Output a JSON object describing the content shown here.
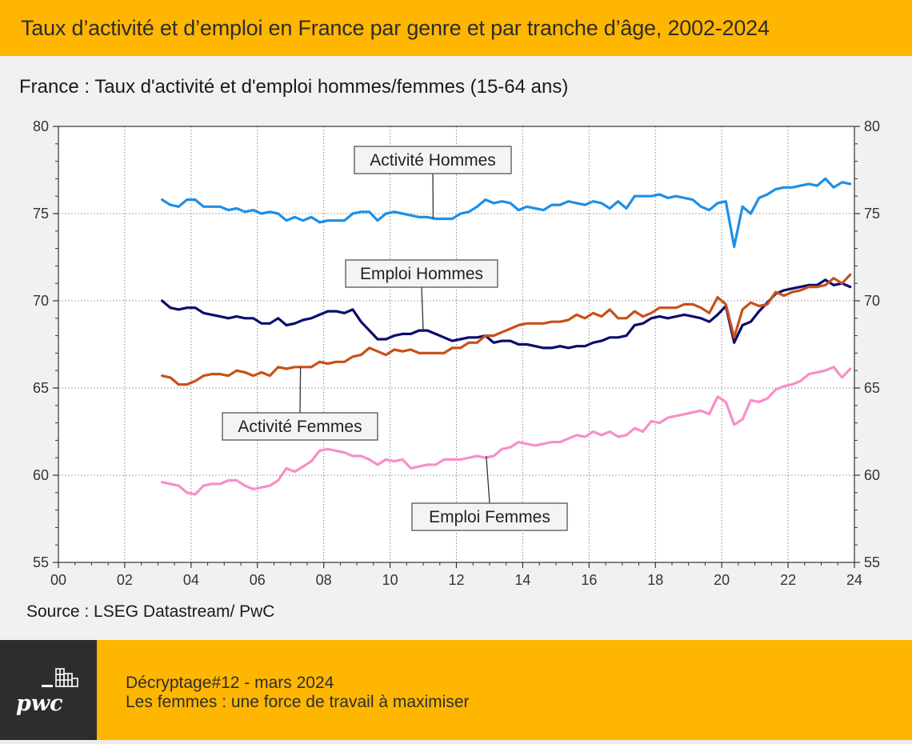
{
  "header": {
    "title": "Taux d’activité et d’emploi en France par genre et par tranche d’âge, 2002-2024"
  },
  "source": "Source : LSEG Datastream/ PwC",
  "footer": {
    "logo": "pwc",
    "line1": "Décryptage#12 - mars 2024",
    "line2": "Les femmes : une force de travail à maximiser"
  },
  "colors": {
    "brand": "#ffb600",
    "dark": "#2d2d2d",
    "activite_hommes": "#1f8fe6",
    "emploi_hommes": "#0b0b6e",
    "activite_femmes": "#c8501a",
    "emploi_femmes": "#f78fc8"
  },
  "chart_data": {
    "type": "line",
    "title": "France : Taux d'activité et d'emploi hommes/femmes (15-64 ans)",
    "x_ticks": [
      "00",
      "02",
      "04",
      "06",
      "08",
      "10",
      "12",
      "14",
      "16",
      "18",
      "20",
      "22",
      "24"
    ],
    "x_tick_values": [
      2000,
      2002,
      2004,
      2006,
      2008,
      2010,
      2012,
      2014,
      2016,
      2018,
      2020,
      2022,
      2024
    ],
    "xlim": [
      2000,
      2024
    ],
    "ylim": [
      55,
      80
    ],
    "y_ticks": [
      55,
      60,
      65,
      70,
      75,
      80
    ],
    "y_axis_right": true,
    "grid": true,
    "x_quarterly_from": 2003.125,
    "series": [
      {
        "name": "Activité Hommes",
        "color_key": "activite_hommes",
        "annotation": {
          "text": "Activité Hommes",
          "pointer_year": 2011.3,
          "pointer_value": 74.7
        },
        "values": [
          75.8,
          75.5,
          75.4,
          75.8,
          75.8,
          75.4,
          75.4,
          75.4,
          75.2,
          75.3,
          75.1,
          75.2,
          75.0,
          75.1,
          75.0,
          74.6,
          74.8,
          74.6,
          74.8,
          74.5,
          74.6,
          74.6,
          74.6,
          75.0,
          75.1,
          75.1,
          74.6,
          75.0,
          75.1,
          75.0,
          74.9,
          74.8,
          74.8,
          74.7,
          74.7,
          74.7,
          75.0,
          75.1,
          75.4,
          75.8,
          75.6,
          75.7,
          75.6,
          75.2,
          75.4,
          75.3,
          75.2,
          75.5,
          75.5,
          75.7,
          75.6,
          75.5,
          75.7,
          75.6,
          75.3,
          75.7,
          75.3,
          76.0,
          76.0,
          76.0,
          76.1,
          75.9,
          76.0,
          75.9,
          75.8,
          75.4,
          75.2,
          75.6,
          75.7,
          73.1,
          75.4,
          75.0,
          75.9,
          76.1,
          76.4,
          76.5,
          76.5,
          76.6,
          76.7,
          76.6,
          77.0,
          76.5,
          76.8,
          76.7
        ]
      },
      {
        "name": "Emploi Hommes",
        "color_key": "emploi_hommes",
        "annotation": {
          "text": "Emploi Hommes",
          "pointer_year": 2011.0,
          "pointer_value": 68.3
        },
        "values": [
          70.0,
          69.6,
          69.5,
          69.6,
          69.6,
          69.3,
          69.2,
          69.1,
          69.0,
          69.1,
          69.0,
          69.0,
          68.7,
          68.7,
          69.0,
          68.6,
          68.7,
          68.9,
          69.0,
          69.2,
          69.4,
          69.4,
          69.3,
          69.5,
          68.8,
          68.3,
          67.8,
          67.8,
          68.0,
          68.1,
          68.1,
          68.3,
          68.3,
          68.1,
          67.9,
          67.7,
          67.8,
          67.9,
          67.9,
          68.0,
          67.6,
          67.7,
          67.7,
          67.5,
          67.5,
          67.4,
          67.3,
          67.3,
          67.4,
          67.3,
          67.4,
          67.4,
          67.6,
          67.7,
          67.9,
          67.9,
          68.0,
          68.6,
          68.7,
          69.0,
          69.1,
          69.0,
          69.1,
          69.2,
          69.1,
          69.0,
          68.8,
          69.2,
          69.7,
          67.6,
          68.6,
          68.8,
          69.4,
          69.9,
          70.4,
          70.6,
          70.7,
          70.8,
          70.9,
          70.9,
          71.2,
          70.9,
          71.0,
          70.8
        ]
      },
      {
        "name": "Activité Femmes",
        "color_key": "activite_femmes",
        "annotation": {
          "text": "Activité Femmes",
          "pointer_year": 2007.3,
          "pointer_value": 66.2
        },
        "values": [
          65.7,
          65.6,
          65.2,
          65.2,
          65.4,
          65.7,
          65.8,
          65.8,
          65.7,
          66.0,
          65.9,
          65.7,
          65.9,
          65.7,
          66.2,
          66.1,
          66.2,
          66.2,
          66.2,
          66.5,
          66.4,
          66.5,
          66.5,
          66.8,
          66.9,
          67.3,
          67.1,
          66.9,
          67.2,
          67.1,
          67.2,
          67.0,
          67.0,
          67.0,
          67.0,
          67.3,
          67.3,
          67.6,
          67.6,
          68.0,
          68.0,
          68.2,
          68.4,
          68.6,
          68.7,
          68.7,
          68.7,
          68.8,
          68.8,
          68.9,
          69.2,
          69.0,
          69.3,
          69.1,
          69.5,
          69.0,
          69.0,
          69.4,
          69.1,
          69.3,
          69.6,
          69.6,
          69.6,
          69.8,
          69.8,
          69.6,
          69.3,
          70.2,
          69.8,
          67.9,
          69.5,
          69.9,
          69.7,
          69.8,
          70.5,
          70.3,
          70.5,
          70.6,
          70.8,
          70.8,
          70.9,
          71.3,
          71.0,
          71.5
        ]
      },
      {
        "name": "Emploi Femmes",
        "color_key": "emploi_femmes",
        "annotation": {
          "text": "Emploi Femmes",
          "pointer_year": 2012.9,
          "pointer_value": 61.1
        },
        "values": [
          59.6,
          59.5,
          59.4,
          59.0,
          58.9,
          59.4,
          59.5,
          59.5,
          59.7,
          59.7,
          59.4,
          59.2,
          59.3,
          59.4,
          59.7,
          60.4,
          60.2,
          60.5,
          60.8,
          61.4,
          61.5,
          61.4,
          61.3,
          61.1,
          61.1,
          60.9,
          60.6,
          60.9,
          60.8,
          60.9,
          60.4,
          60.5,
          60.6,
          60.6,
          60.9,
          60.9,
          60.9,
          61.0,
          61.1,
          61.0,
          61.1,
          61.5,
          61.6,
          61.9,
          61.8,
          61.7,
          61.8,
          61.9,
          61.9,
          62.1,
          62.3,
          62.2,
          62.5,
          62.3,
          62.5,
          62.2,
          62.3,
          62.7,
          62.5,
          63.1,
          63.0,
          63.3,
          63.4,
          63.5,
          63.6,
          63.7,
          63.5,
          64.5,
          64.2,
          62.9,
          63.2,
          64.3,
          64.2,
          64.4,
          64.9,
          65.1,
          65.2,
          65.4,
          65.8,
          65.9,
          66.0,
          66.2,
          65.6,
          66.1
        ]
      }
    ]
  }
}
